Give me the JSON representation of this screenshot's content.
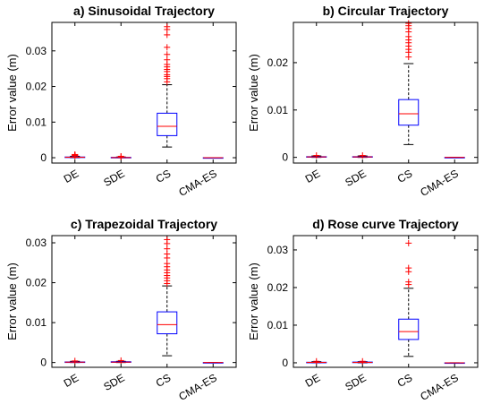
{
  "chart_data": [
    {
      "type": "box",
      "title": "a) Sinusoidal Trajectory",
      "ylabel": "Error value (m)",
      "categories": [
        "DE",
        "SDE",
        "CS",
        "CMA-ES"
      ],
      "ylim": [
        -0.0015,
        0.038
      ],
      "yticks": [
        0,
        0.01,
        0.02,
        0.03
      ],
      "ytick_labels": [
        "0",
        "0.01",
        "0.02",
        "0.03"
      ],
      "boxes": [
        {
          "name": "DE",
          "whisker_low": 0.0,
          "q1": 0.0001,
          "median": 0.00015,
          "q3": 0.0002,
          "whisker_high": 0.0004,
          "outliers": [
            0.0005,
            0.0006,
            0.0007,
            0.0008,
            0.0009
          ]
        },
        {
          "name": "SDE",
          "whisker_low": 0.0,
          "q1": 0.0,
          "median": 5e-05,
          "q3": 0.0001,
          "whisker_high": 0.0002,
          "outliers": [
            0.0003,
            0.0004
          ]
        },
        {
          "name": "CS",
          "whisker_low": 0.003,
          "q1": 0.0062,
          "median": 0.0088,
          "q3": 0.0125,
          "whisker_high": 0.0205,
          "outliers": [
            0.0213,
            0.0222,
            0.0228,
            0.0233,
            0.0242,
            0.0248,
            0.0255,
            0.0262,
            0.0275,
            0.029,
            0.031,
            0.0345,
            0.036,
            0.0368
          ]
        },
        {
          "name": "CMA-ES",
          "whisker_low": 0.0,
          "q1": 0.0,
          "median": 0.0,
          "q3": 0.0,
          "whisker_high": 0.0,
          "outliers": []
        }
      ]
    },
    {
      "type": "box",
      "title": "b) Circular Trajectory",
      "ylabel": "Error value (m)",
      "categories": [
        "DE",
        "SDE",
        "CS",
        "CMA-ES"
      ],
      "ylim": [
        -0.0012,
        0.0285
      ],
      "yticks": [
        0,
        0.01,
        0.02
      ],
      "ytick_labels": [
        "0",
        "0.01",
        "0.02"
      ],
      "boxes": [
        {
          "name": "DE",
          "whisker_low": 0.0,
          "q1": 5e-05,
          "median": 0.0001,
          "q3": 0.00015,
          "whisker_high": 0.0003,
          "outliers": [
            0.0004
          ]
        },
        {
          "name": "SDE",
          "whisker_low": 0.0,
          "q1": 5e-05,
          "median": 0.0001,
          "q3": 0.00015,
          "whisker_high": 0.0003,
          "outliers": [
            0.0004
          ]
        },
        {
          "name": "CS",
          "whisker_low": 0.0027,
          "q1": 0.0068,
          "median": 0.0092,
          "q3": 0.0122,
          "whisker_high": 0.0198,
          "outliers": [
            0.0212,
            0.0222,
            0.0228,
            0.0235,
            0.0242,
            0.0248,
            0.0255,
            0.0265,
            0.0272,
            0.0278,
            0.0283
          ]
        },
        {
          "name": "CMA-ES",
          "whisker_low": 0.0,
          "q1": 0.0,
          "median": 0.0,
          "q3": 0.0,
          "whisker_high": 0.0,
          "outliers": []
        }
      ]
    },
    {
      "type": "box",
      "title": "c) Trapezoidal Trajectory",
      "ylabel": "Error value (m)",
      "categories": [
        "DE",
        "SDE",
        "CS",
        "CMA-ES"
      ],
      "ylim": [
        -0.0012,
        0.0318
      ],
      "yticks": [
        0,
        0.01,
        0.02,
        0.03
      ],
      "ytick_labels": [
        "0",
        "0.01",
        "0.02",
        "0.03"
      ],
      "boxes": [
        {
          "name": "DE",
          "whisker_low": 0.0,
          "q1": 5e-05,
          "median": 0.0001,
          "q3": 0.00015,
          "whisker_high": 0.0003,
          "outliers": [
            0.0004
          ]
        },
        {
          "name": "SDE",
          "whisker_low": 0.0,
          "q1": 5e-05,
          "median": 0.0001,
          "q3": 0.0002,
          "whisker_high": 0.0003,
          "outliers": [
            0.0005
          ]
        },
        {
          "name": "CS",
          "whisker_low": 0.0017,
          "q1": 0.0072,
          "median": 0.0095,
          "q3": 0.0127,
          "whisker_high": 0.0192,
          "outliers": [
            0.0198,
            0.0205,
            0.0212,
            0.0218,
            0.0225,
            0.0232,
            0.024,
            0.0248,
            0.0262,
            0.0272,
            0.0285,
            0.0298,
            0.0308
          ]
        },
        {
          "name": "CMA-ES",
          "whisker_low": 0.0,
          "q1": 0.0,
          "median": 0.0,
          "q3": 0.0,
          "whisker_high": 0.0,
          "outliers": []
        }
      ]
    },
    {
      "type": "box",
      "title": "d) Rose curve Trajectory",
      "ylabel": "Error value (m)",
      "categories": [
        "DE",
        "SDE",
        "CS",
        "CMA-ES"
      ],
      "ylim": [
        -0.0012,
        0.0338
      ],
      "yticks": [
        0,
        0.01,
        0.02,
        0.03
      ],
      "ytick_labels": [
        "0",
        "0.01",
        "0.02",
        "0.03"
      ],
      "boxes": [
        {
          "name": "DE",
          "whisker_low": 0.0,
          "q1": 5e-05,
          "median": 0.0001,
          "q3": 0.00015,
          "whisker_high": 0.0003,
          "outliers": [
            0.0004
          ]
        },
        {
          "name": "SDE",
          "whisker_low": 0.0,
          "q1": 5e-05,
          "median": 0.0001,
          "q3": 0.0002,
          "whisker_high": 0.0003,
          "outliers": [
            0.0004
          ]
        },
        {
          "name": "CS",
          "whisker_low": 0.0017,
          "q1": 0.0062,
          "median": 0.0083,
          "q3": 0.0116,
          "whisker_high": 0.0198,
          "outliers": [
            0.0208,
            0.0215,
            0.0242,
            0.0252,
            0.0318
          ]
        },
        {
          "name": "CMA-ES",
          "whisker_low": 0.0,
          "q1": 0.0,
          "median": 0.0,
          "q3": 0.0,
          "whisker_high": 0.0,
          "outliers": []
        }
      ]
    }
  ],
  "colors": {
    "box": "#0000ff",
    "median": "#ff0000",
    "whisker": "#000000",
    "outlier": "#ff0000",
    "axis": "#000000"
  }
}
